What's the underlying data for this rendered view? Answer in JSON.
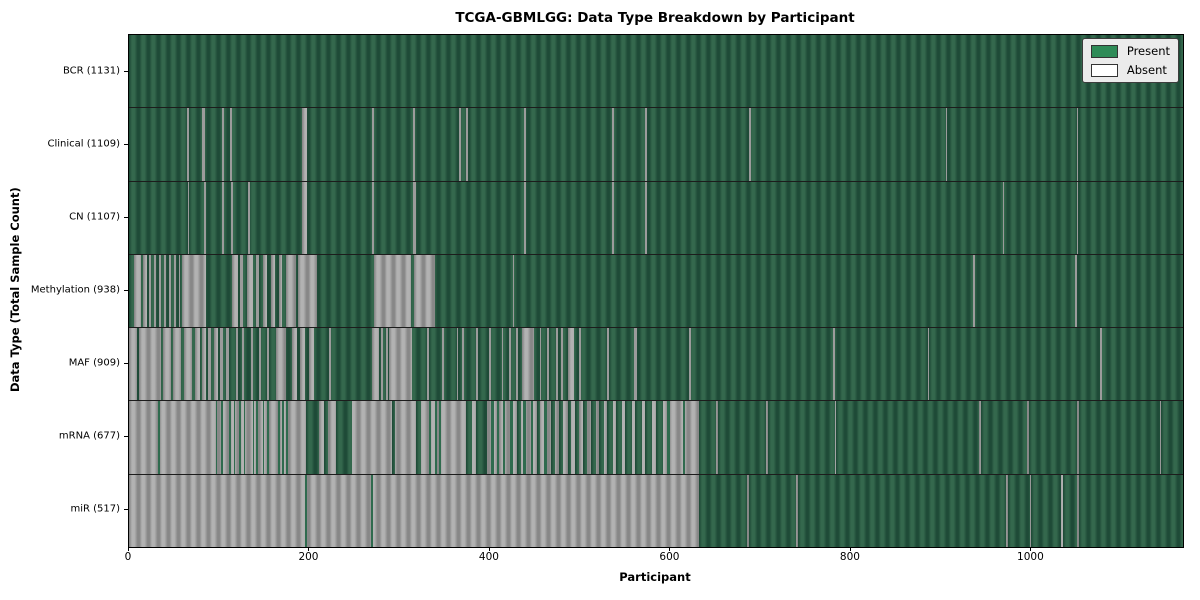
{
  "title": "TCGA-GBMLGG: Data Type Breakdown by Participant",
  "colors": {
    "present": "#2e8b57",
    "absent": "#ffffff",
    "background": "#ffffff"
  },
  "legend": {
    "items": [
      {
        "label": "Present",
        "color": "#2e8b57"
      },
      {
        "label": "Absent",
        "color": "#ffffff"
      }
    ]
  },
  "chart_data": {
    "type": "heatmap",
    "title": "TCGA-GBMLGG: Data Type Breakdown by Participant",
    "xlabel": "Participant",
    "ylabel": "Data Type (Total Sample Count)",
    "legend_position": "upper right",
    "x_range": [
      0,
      1168
    ],
    "x_ticks": [
      0,
      200,
      400,
      600,
      800,
      1000
    ],
    "rows": [
      {
        "name": "BCR",
        "label": "BCR (1131)",
        "sample_count": 1131,
        "base": "present",
        "runs_type": "absent",
        "runs": []
      },
      {
        "name": "Clinical",
        "label": "Clinical (1109)",
        "sample_count": 1109,
        "base": "present",
        "runs_type": "absent",
        "runs": [
          [
            64,
            66
          ],
          [
            81,
            84
          ],
          [
            103,
            105
          ],
          [
            112,
            114
          ],
          [
            192,
            197
          ],
          [
            269,
            271
          ],
          [
            315,
            317
          ],
          [
            366,
            368
          ],
          [
            374,
            376
          ],
          [
            438,
            440
          ],
          [
            535,
            538
          ],
          [
            572,
            574
          ],
          [
            687,
            689
          ],
          [
            905,
            907
          ],
          [
            1050,
            1052
          ]
        ]
      },
      {
        "name": "CN",
        "label": "CN (1107)",
        "sample_count": 1107,
        "base": "present",
        "runs_type": "absent",
        "runs": [
          [
            65,
            67
          ],
          [
            83,
            85
          ],
          [
            103,
            105
          ],
          [
            113,
            115
          ],
          [
            132,
            134
          ],
          [
            192,
            197
          ],
          [
            269,
            271
          ],
          [
            315,
            318
          ],
          [
            438,
            440
          ],
          [
            535,
            538
          ],
          [
            572,
            574
          ],
          [
            968,
            970
          ],
          [
            1050,
            1052
          ]
        ]
      },
      {
        "name": "Methylation",
        "label": "Methylation (938)",
        "sample_count": 938,
        "base": "present",
        "runs_type": "absent",
        "runs": [
          [
            6,
            13
          ],
          [
            16,
            20
          ],
          [
            22,
            24
          ],
          [
            28,
            30
          ],
          [
            33,
            35
          ],
          [
            39,
            41
          ],
          [
            44,
            46
          ],
          [
            50,
            52
          ],
          [
            55,
            57
          ],
          [
            59,
            85
          ],
          [
            114,
            121
          ],
          [
            123,
            126
          ],
          [
            131,
            137
          ],
          [
            141,
            144
          ],
          [
            149,
            153
          ],
          [
            157,
            162
          ],
          [
            166,
            170
          ],
          [
            174,
            185
          ],
          [
            187,
            208
          ],
          [
            272,
            313
          ],
          [
            316,
            339
          ],
          [
            425,
            427
          ],
          [
            935,
            937
          ],
          [
            1048,
            1050
          ]
        ]
      },
      {
        "name": "MAF",
        "label": "MAF (909)",
        "sample_count": 909,
        "base": "present",
        "runs_type": "absent",
        "runs": [
          [
            0,
            9
          ],
          [
            11,
            35
          ],
          [
            38,
            47
          ],
          [
            49,
            58
          ],
          [
            61,
            70
          ],
          [
            73,
            79
          ],
          [
            81,
            85
          ],
          [
            88,
            91
          ],
          [
            94,
            99
          ],
          [
            101,
            104
          ],
          [
            108,
            111
          ],
          [
            119,
            121
          ],
          [
            125,
            127
          ],
          [
            135,
            137
          ],
          [
            144,
            146
          ],
          [
            153,
            155
          ],
          [
            163,
            174
          ],
          [
            181,
            186
          ],
          [
            190,
            195
          ],
          [
            200,
            205
          ],
          [
            222,
            224
          ],
          [
            269,
            277
          ],
          [
            279,
            281
          ],
          [
            285,
            287
          ],
          [
            288,
            314
          ],
          [
            330,
            332
          ],
          [
            347,
            349
          ],
          [
            363,
            365
          ],
          [
            369,
            371
          ],
          [
            385,
            387
          ],
          [
            399,
            401
          ],
          [
            413,
            415
          ],
          [
            421,
            423
          ],
          [
            429,
            431
          ],
          [
            436,
            449
          ],
          [
            455,
            457
          ],
          [
            463,
            465
          ],
          [
            473,
            475
          ],
          [
            479,
            481
          ],
          [
            486,
            493
          ],
          [
            499,
            501
          ],
          [
            530,
            532
          ],
          [
            560,
            563
          ],
          [
            621,
            623
          ],
          [
            780,
            782
          ],
          [
            885,
            887
          ],
          [
            1076,
            1078
          ]
        ]
      },
      {
        "name": "mRNA",
        "label": "mRNA (677)",
        "sample_count": 677,
        "base": "absent",
        "runs_type": "present",
        "runs": [
          [
            32,
            34
          ],
          [
            96,
            98
          ],
          [
            102,
            104
          ],
          [
            111,
            113
          ],
          [
            116,
            118
          ],
          [
            122,
            124
          ],
          [
            127,
            129
          ],
          [
            137,
            139
          ],
          [
            141,
            143
          ],
          [
            148,
            150
          ],
          [
            153,
            155
          ],
          [
            165,
            167
          ],
          [
            170,
            172
          ],
          [
            174,
            176
          ],
          [
            196,
            211
          ],
          [
            216,
            220
          ],
          [
            229,
            247
          ],
          [
            291,
            295
          ],
          [
            318,
            324
          ],
          [
            333,
            335
          ],
          [
            339,
            341
          ],
          [
            344,
            346
          ],
          [
            373,
            380
          ],
          [
            384,
            397
          ],
          [
            401,
            404
          ],
          [
            408,
            410
          ],
          [
            414,
            417
          ],
          [
            422,
            425
          ],
          [
            430,
            434
          ],
          [
            437,
            440
          ],
          [
            445,
            448
          ],
          [
            452,
            456
          ],
          [
            460,
            463
          ],
          [
            468,
            472
          ],
          [
            477,
            481
          ],
          [
            486,
            490
          ],
          [
            494,
            499
          ],
          [
            503,
            508
          ],
          [
            512,
            517
          ],
          [
            521,
            526
          ],
          [
            530,
            536
          ],
          [
            540,
            546
          ],
          [
            550,
            557
          ],
          [
            561,
            568
          ],
          [
            572,
            580
          ],
          [
            584,
            592
          ],
          [
            596,
            599
          ],
          [
            614,
            616
          ],
          [
            632,
            651
          ],
          [
            653,
            706
          ],
          [
            708,
            782
          ],
          [
            784,
            942
          ],
          [
            944,
            995
          ],
          [
            997,
            1050
          ],
          [
            1053,
            1142
          ],
          [
            1144,
            1168
          ]
        ]
      },
      {
        "name": "miR",
        "label": "miR (517)",
        "sample_count": 517,
        "base": "absent",
        "runs_type": "present",
        "runs": [
          [
            195,
            197
          ],
          [
            268,
            270
          ],
          [
            632,
            685
          ],
          [
            687,
            739
          ],
          [
            741,
            972
          ],
          [
            974,
            998
          ],
          [
            1000,
            1033
          ],
          [
            1035,
            1050
          ],
          [
            1053,
            1168
          ]
        ]
      }
    ]
  }
}
